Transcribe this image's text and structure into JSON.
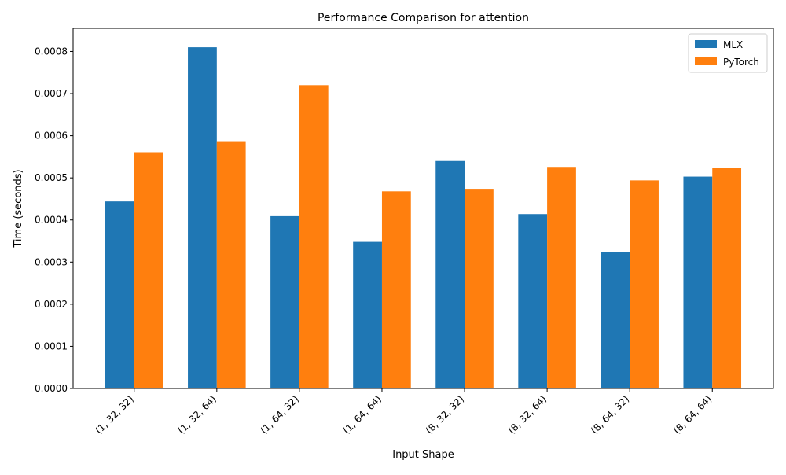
{
  "chart_data": {
    "type": "bar",
    "title": "Performance Comparison for attention",
    "xlabel": "Input Shape",
    "ylabel": "Time (seconds)",
    "categories": [
      "(1, 32, 32)",
      "(1, 32, 64)",
      "(1, 64, 32)",
      "(1, 64, 64)",
      "(8, 32, 32)",
      "(8, 32, 64)",
      "(8, 64, 32)",
      "(8, 64, 64)"
    ],
    "series": [
      {
        "name": "MLX",
        "color": "#1f77b4",
        "values": [
          0.000444,
          0.00081,
          0.000409,
          0.000348,
          0.00054,
          0.000414,
          0.000323,
          0.000503
        ]
      },
      {
        "name": "PyTorch",
        "color": "#ff7f0e",
        "values": [
          0.000561,
          0.000587,
          0.00072,
          0.000468,
          0.000474,
          0.000526,
          0.000494,
          0.000524
        ]
      }
    ],
    "ylim": [
      0,
      0.000855
    ],
    "yticks": [
      0.0,
      0.0001,
      0.0002,
      0.0003,
      0.0004,
      0.0005,
      0.0006,
      0.0007,
      0.0008
    ],
    "ytick_labels": [
      "0.0000",
      "0.0001",
      "0.0002",
      "0.0003",
      "0.0004",
      "0.0005",
      "0.0006",
      "0.0007",
      "0.0008"
    ],
    "legend_position": "top-right",
    "grid": false
  }
}
